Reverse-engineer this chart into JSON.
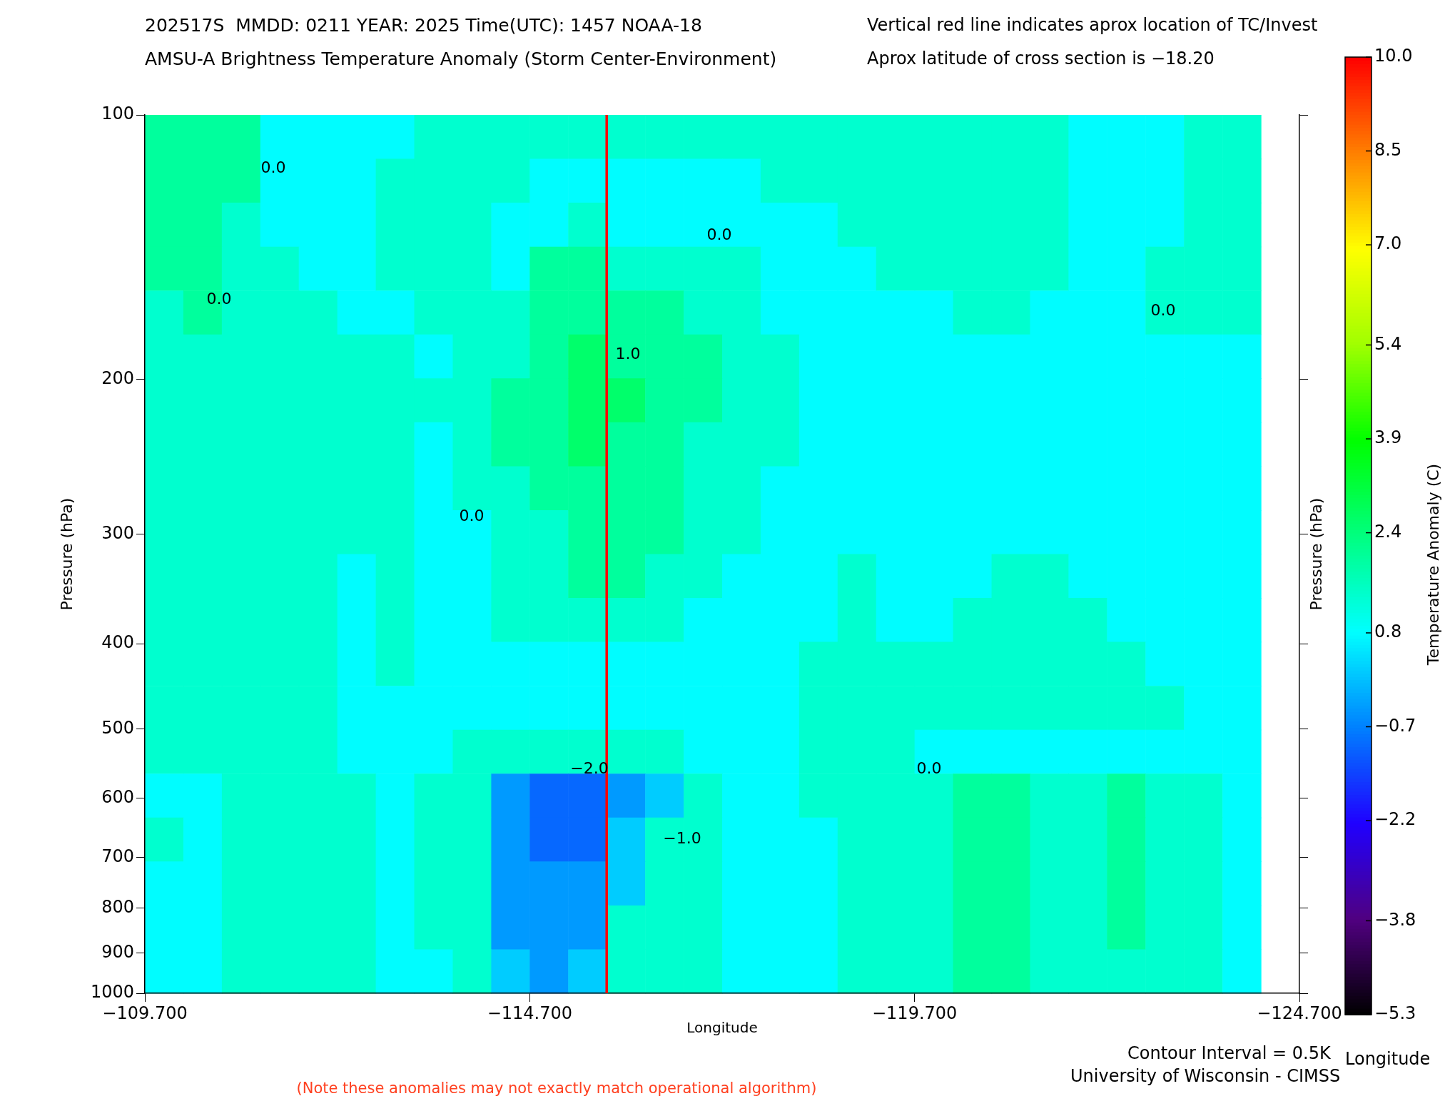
{
  "chart_data": {
    "type": "heatmap",
    "title": "202517S  MMDD: 0211 YEAR: 2025 Time(UTC): 1457 NOAA-18",
    "subtitle": "AMSU-A Brightness Temperature Anomaly (Storm Center-Environment)",
    "xlabel": "Longitude",
    "ylabel": "Pressure (hPa)",
    "y2label": "Pressure (hPa)",
    "clabel": "Temperature Anomaly (C)",
    "x": [
      -109.95,
      -110.45,
      -110.95,
      -111.45,
      -111.95,
      -112.45,
      -112.95,
      -113.45,
      -113.95,
      -114.45,
      -114.95,
      -115.45,
      -115.95,
      -116.45,
      -116.95,
      -117.45,
      -117.95,
      -118.45,
      -118.95,
      -119.45,
      -119.95,
      -120.45,
      -120.95,
      -121.45,
      -121.95,
      -122.45,
      -122.95,
      -123.45,
      -123.95
    ],
    "cells": [
      [
        2.0,
        2.0,
        2.0,
        0.8,
        0.8,
        0.8,
        0.8,
        1.4,
        1.4,
        1.4,
        1.4,
        1.4,
        1.4,
        1.4,
        1.4,
        1.4,
        1.4,
        1.4,
        1.4,
        1.4,
        1.4,
        1.4,
        1.4,
        1.4,
        0.8,
        0.8,
        0.8,
        1.4,
        1.4
      ],
      [
        2.0,
        2.0,
        2.0,
        0.8,
        0.8,
        0.8,
        1.4,
        1.4,
        1.4,
        1.4,
        0.8,
        0.8,
        0.8,
        0.8,
        0.8,
        0.8,
        1.4,
        1.4,
        1.4,
        1.4,
        1.4,
        1.4,
        1.4,
        1.4,
        0.8,
        0.8,
        0.8,
        1.4,
        1.4
      ],
      [
        2.0,
        2.0,
        1.4,
        0.8,
        0.8,
        0.8,
        1.4,
        1.4,
        1.4,
        0.8,
        0.8,
        1.4,
        0.8,
        0.8,
        0.8,
        0.8,
        0.8,
        0.8,
        1.4,
        1.4,
        1.4,
        1.4,
        1.4,
        1.4,
        0.8,
        0.8,
        0.8,
        1.4,
        1.4
      ],
      [
        2.0,
        2.0,
        1.4,
        1.4,
        0.8,
        0.8,
        1.4,
        1.4,
        1.4,
        0.8,
        2.0,
        2.0,
        1.4,
        1.4,
        1.4,
        1.4,
        0.8,
        0.8,
        0.8,
        1.4,
        1.4,
        1.4,
        1.4,
        1.4,
        0.8,
        0.8,
        1.4,
        1.4,
        1.4
      ],
      [
        1.4,
        2.0,
        1.4,
        1.4,
        1.4,
        0.8,
        0.8,
        1.4,
        1.4,
        1.4,
        2.0,
        2.0,
        2.0,
        2.0,
        1.4,
        1.4,
        0.8,
        0.8,
        0.8,
        0.8,
        0.8,
        1.4,
        1.4,
        0.8,
        0.8,
        0.8,
        1.4,
        1.4,
        1.4
      ],
      [
        1.4,
        1.4,
        1.4,
        1.4,
        1.4,
        1.4,
        1.4,
        0.8,
        1.4,
        1.4,
        2.0,
        2.6,
        2.0,
        2.0,
        2.0,
        1.4,
        1.4,
        0.8,
        0.8,
        0.8,
        0.8,
        0.8,
        0.8,
        0.8,
        0.8,
        0.8,
        0.8,
        0.8,
        0.8
      ],
      [
        1.4,
        1.4,
        1.4,
        1.4,
        1.4,
        1.4,
        1.4,
        1.4,
        1.4,
        2.0,
        2.0,
        2.6,
        2.6,
        2.0,
        2.0,
        1.4,
        1.4,
        0.8,
        0.8,
        0.8,
        0.8,
        0.8,
        0.8,
        0.8,
        0.8,
        0.8,
        0.8,
        0.8,
        0.8
      ],
      [
        1.4,
        1.4,
        1.4,
        1.4,
        1.4,
        1.4,
        1.4,
        0.8,
        1.4,
        2.0,
        2.0,
        2.6,
        2.0,
        2.0,
        1.4,
        1.4,
        1.4,
        0.8,
        0.8,
        0.8,
        0.8,
        0.8,
        0.8,
        0.8,
        0.8,
        0.8,
        0.8,
        0.8,
        0.8
      ],
      [
        1.4,
        1.4,
        1.4,
        1.4,
        1.4,
        1.4,
        1.4,
        0.8,
        1.4,
        1.4,
        2.0,
        2.0,
        2.0,
        2.0,
        1.4,
        1.4,
        0.8,
        0.8,
        0.8,
        0.8,
        0.8,
        0.8,
        0.8,
        0.8,
        0.8,
        0.8,
        0.8,
        0.8,
        0.8
      ],
      [
        1.4,
        1.4,
        1.4,
        1.4,
        1.4,
        1.4,
        1.4,
        0.8,
        0.8,
        1.4,
        1.4,
        2.0,
        2.0,
        2.0,
        1.4,
        1.4,
        0.8,
        0.8,
        0.8,
        0.8,
        0.8,
        0.8,
        0.8,
        0.8,
        0.8,
        0.8,
        0.8,
        0.8,
        0.8
      ],
      [
        1.4,
        1.4,
        1.4,
        1.4,
        1.4,
        0.8,
        1.4,
        0.8,
        0.8,
        1.4,
        1.4,
        2.0,
        2.0,
        1.4,
        1.4,
        0.8,
        0.8,
        0.8,
        1.4,
        0.8,
        0.8,
        0.8,
        1.4,
        1.4,
        0.8,
        0.8,
        0.8,
        0.8,
        0.8
      ],
      [
        1.4,
        1.4,
        1.4,
        1.4,
        1.4,
        0.8,
        1.4,
        0.8,
        0.8,
        1.4,
        1.4,
        1.4,
        1.4,
        1.4,
        0.8,
        0.8,
        0.8,
        0.8,
        1.4,
        0.8,
        0.8,
        1.4,
        1.4,
        1.4,
        1.4,
        0.8,
        0.8,
        0.8,
        0.8
      ],
      [
        1.4,
        1.4,
        1.4,
        1.4,
        1.4,
        0.8,
        1.4,
        0.8,
        0.8,
        0.8,
        0.8,
        0.8,
        0.8,
        0.8,
        0.8,
        0.8,
        0.8,
        1.4,
        1.4,
        1.4,
        1.4,
        1.4,
        1.4,
        1.4,
        1.4,
        1.4,
        0.8,
        0.8,
        0.8
      ],
      [
        1.4,
        1.4,
        1.4,
        1.4,
        1.4,
        0.8,
        0.8,
        0.8,
        0.8,
        0.8,
        0.8,
        0.8,
        0.8,
        0.8,
        0.8,
        0.8,
        0.8,
        1.4,
        1.4,
        1.4,
        1.4,
        1.4,
        1.4,
        1.4,
        1.4,
        1.4,
        1.4,
        0.8,
        0.8
      ],
      [
        1.4,
        1.4,
        1.4,
        1.4,
        1.4,
        0.8,
        0.8,
        0.8,
        1.4,
        1.4,
        1.4,
        1.4,
        1.4,
        1.4,
        0.8,
        0.8,
        0.8,
        1.4,
        1.4,
        1.4,
        0.8,
        0.8,
        0.8,
        0.8,
        0.8,
        0.8,
        0.8,
        0.8,
        0.8
      ],
      [
        0.8,
        0.8,
        1.4,
        1.4,
        1.4,
        1.4,
        0.8,
        1.4,
        1.4,
        -0.4,
        -1.0,
        -1.0,
        -0.4,
        0.2,
        1.4,
        0.8,
        0.8,
        1.4,
        1.4,
        1.4,
        1.4,
        2.0,
        2.0,
        1.4,
        1.4,
        2.0,
        1.4,
        1.4,
        0.8
      ],
      [
        1.4,
        0.8,
        1.4,
        1.4,
        1.4,
        1.4,
        0.8,
        1.4,
        1.4,
        -0.4,
        -1.0,
        -1.0,
        0.2,
        1.4,
        1.4,
        0.8,
        0.8,
        0.8,
        1.4,
        1.4,
        1.4,
        2.0,
        2.0,
        1.4,
        1.4,
        2.0,
        1.4,
        1.4,
        0.8
      ],
      [
        0.8,
        0.8,
        1.4,
        1.4,
        1.4,
        1.4,
        0.8,
        1.4,
        1.4,
        -0.4,
        -0.4,
        -0.4,
        0.2,
        1.4,
        1.4,
        0.8,
        0.8,
        0.8,
        1.4,
        1.4,
        1.4,
        2.0,
        2.0,
        1.4,
        1.4,
        2.0,
        1.4,
        1.4,
        0.8
      ],
      [
        0.8,
        0.8,
        1.4,
        1.4,
        1.4,
        1.4,
        0.8,
        1.4,
        1.4,
        -0.4,
        -0.4,
        -0.4,
        1.4,
        1.4,
        1.4,
        0.8,
        0.8,
        0.8,
        1.4,
        1.4,
        1.4,
        2.0,
        2.0,
        1.4,
        1.4,
        2.0,
        1.4,
        1.4,
        0.8
      ],
      [
        0.8,
        0.8,
        1.4,
        1.4,
        1.4,
        1.4,
        0.8,
        0.8,
        1.4,
        0.2,
        -0.4,
        0.2,
        1.4,
        1.4,
        1.4,
        0.8,
        0.8,
        0.8,
        1.4,
        1.4,
        1.4,
        2.0,
        2.0,
        1.4,
        1.4,
        1.4,
        1.4,
        1.4,
        0.8
      ]
    ],
    "xlim": [
      -109.7,
      -124.7
    ],
    "xticks": [
      {
        "value": -109.7,
        "label": "−109.700"
      },
      {
        "value": -114.7,
        "label": "−114.700"
      },
      {
        "value": -119.7,
        "label": "−119.700"
      },
      {
        "value": -124.7,
        "label": "−124.700"
      }
    ],
    "ylim": [
      1000,
      100
    ],
    "yticks": [
      100,
      200,
      300,
      400,
      500,
      600,
      700,
      800,
      900,
      1000
    ],
    "log": "y",
    "clim": [
      -5.3,
      10.0
    ],
    "cticks": [
      {
        "value": -5.3,
        "label": "−5.3"
      },
      {
        "value": -3.8,
        "label": "−3.8"
      },
      {
        "value": -2.2,
        "label": "−2.2"
      },
      {
        "value": -0.7,
        "label": "−0.7"
      },
      0.8,
      2.4,
      3.9,
      5.4,
      {
        "value": 7,
        "label": "7.0"
      },
      8.5,
      {
        "value": 10,
        "label": "10.0"
      }
    ],
    "ref_lines": [
      {
        "axis": "x",
        "value": -115.7,
        "color": "#ff0000"
      }
    ],
    "grid": false,
    "legend": false,
    "annotations": [
      "Vertical red line indicates aprox location of TC/Invest",
      "Aprox latitude of cross section is −18.20",
      "Contour Interval = 0.5K",
      "Longitude",
      "University of Wisconsin - CIMSS",
      "(Note these anomalies may not exactly match operational algorithm)",
      "0.0",
      "0.0",
      "1.0",
      "0.0",
      "0.0",
      "0.0",
      "−2.0",
      "−1.0",
      "0.0"
    ]
  }
}
